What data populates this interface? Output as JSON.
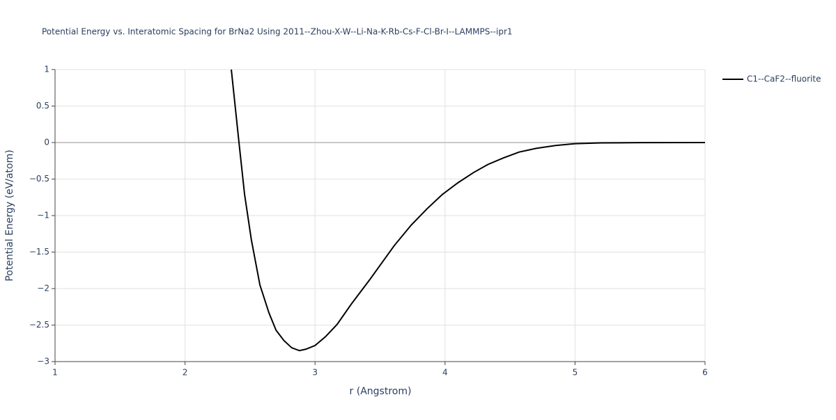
{
  "chart_data": {
    "type": "line",
    "title": "Potential Energy vs. Interatomic Spacing for BrNa2 Using 2011--Zhou-X-W--Li-Na-K-Rb-Cs-F-Cl-Br-I--LAMMPS--ipr1",
    "x_label": "r (Angstrom)",
    "y_label": "Potential Energy (eV/atom)",
    "x": [
      2.356,
      2.415,
      2.458,
      2.51,
      2.576,
      2.645,
      2.7,
      2.76,
      2.82,
      2.88,
      2.93,
      3.0,
      3.08,
      3.17,
      3.28,
      3.42,
      3.61,
      3.74,
      3.86,
      3.98,
      4.1,
      4.22,
      4.33,
      4.45,
      4.57,
      4.7,
      4.85,
      5.0,
      5.2,
      5.5,
      6.0
    ],
    "series": [
      {
        "name": "C1--CaF2--fluorite",
        "color": "#000000",
        "values": [
          1,
          0,
          -0.71,
          -1.33,
          -1.95,
          -2.33,
          -2.57,
          -2.71,
          -2.81,
          -2.85,
          -2.83,
          -2.78,
          -2.66,
          -2.49,
          -2.21,
          -1.88,
          -1.41,
          -1.13,
          -0.91,
          -0.71,
          -0.55,
          -0.41,
          -0.3,
          -0.21,
          -0.13,
          -0.08,
          -0.04,
          -0.015,
          -0.005,
          -0.001,
          0
        ]
      }
    ],
    "xlim": [
      1,
      6
    ],
    "xticks": [
      1,
      2,
      3,
      4,
      5,
      6
    ],
    "ylim": [
      -3,
      1
    ],
    "yticks": [
      {
        "value": -3,
        "label": "−3"
      },
      {
        "value": -2.5,
        "label": "−2.5"
      },
      {
        "value": -2,
        "label": "−2"
      },
      {
        "value": -1.5,
        "label": "−1.5"
      },
      {
        "value": -1,
        "label": "−1"
      },
      {
        "value": -0.5,
        "label": "−0.5"
      },
      0,
      0.5,
      1
    ],
    "grid": true,
    "legend": "right"
  }
}
